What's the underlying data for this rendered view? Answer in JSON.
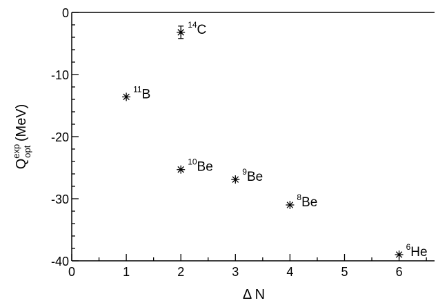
{
  "chart_data": {
    "type": "scatter",
    "title": "",
    "xlabel": "Δ N",
    "ylabel": {
      "base": "Q",
      "sup": "exp",
      "sub": "opt",
      "unit": " (MeV)"
    },
    "xlim": [
      0,
      6.65
    ],
    "ylim": [
      -40,
      0
    ],
    "xticks": [
      "0",
      "1",
      "2",
      "3",
      "4",
      "5",
      "6"
    ],
    "yticks": [
      "0",
      "-10",
      "-20",
      "-30",
      "-40"
    ],
    "grid": false,
    "marker": "asterisk",
    "color": "#000000",
    "points": [
      {
        "x": 2,
        "y": -3.2,
        "err": 1.0,
        "mass": "14",
        "element": "C"
      },
      {
        "x": 1,
        "y": -13.6,
        "err": 0,
        "mass": "11",
        "element": "B"
      },
      {
        "x": 2,
        "y": -25.3,
        "err": 0,
        "mass": "10",
        "element": "Be"
      },
      {
        "x": 3,
        "y": -26.9,
        "err": 0,
        "mass": "9",
        "element": "Be"
      },
      {
        "x": 4,
        "y": -31.0,
        "err": 0,
        "mass": "8",
        "element": "Be"
      },
      {
        "x": 6,
        "y": -39.0,
        "err": 0,
        "mass": "6",
        "element": "He"
      }
    ]
  }
}
